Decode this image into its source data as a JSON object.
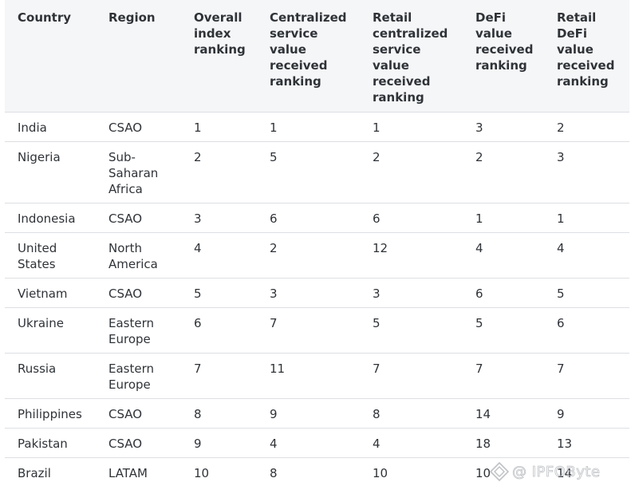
{
  "table": {
    "headers": [
      "Country",
      "Region",
      "Overall index ranking",
      "Centralized service value received ranking",
      "Retail centralized service value received ranking",
      "DeFi value received ranking",
      "Retail DeFi value received ranking"
    ],
    "rows": [
      [
        "India",
        "CSAO",
        "1",
        "1",
        "1",
        "3",
        "2"
      ],
      [
        "Nigeria",
        "Sub-Saharan Africa",
        "2",
        "5",
        "2",
        "2",
        "3"
      ],
      [
        "Indonesia",
        "CSAO",
        "3",
        "6",
        "6",
        "1",
        "1"
      ],
      [
        "United States",
        "North America",
        "4",
        "2",
        "12",
        "4",
        "4"
      ],
      [
        "Vietnam",
        "CSAO",
        "5",
        "3",
        "3",
        "6",
        "5"
      ],
      [
        "Ukraine",
        "Eastern Europe",
        "6",
        "7",
        "5",
        "5",
        "6"
      ],
      [
        "Russia",
        "Eastern Europe",
        "7",
        "11",
        "7",
        "7",
        "7"
      ],
      [
        "Philippines",
        "CSAO",
        "8",
        "9",
        "8",
        "14",
        "9"
      ],
      [
        "Pakistan",
        "CSAO",
        "9",
        "4",
        "4",
        "18",
        "13"
      ],
      [
        "Brazil",
        "LATAM",
        "10",
        "8",
        "10",
        "10",
        "14"
      ]
    ]
  },
  "watermark": {
    "text": "@ IPFOByte",
    "logo_icon": "diamond-logo-icon"
  }
}
